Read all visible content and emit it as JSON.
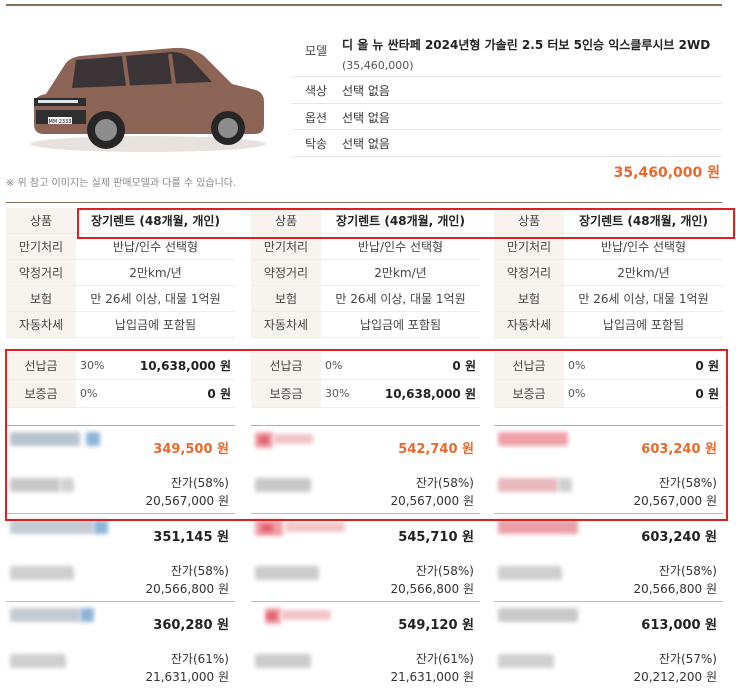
{
  "vehicle": {
    "labels": {
      "model": "모델",
      "color": "색상",
      "option": "옵션",
      "consignment": "탁송"
    },
    "model_name": "디 올 뉴 싼타페 2024년형 가솔린 2.5 터보 5인승 익스클루시브 2WD",
    "model_price": "(35,460,000)",
    "color": "선택 없음",
    "option": "선택 없음",
    "consignment": "선택 없음",
    "plate_text": "MM 2333",
    "car_color": "#8c6455",
    "disclaimer": "※ 위 참고 이미지는 실제 판매모델과 다를 수 있습니다.",
    "total_price": "35,460,000 원"
  },
  "labels": {
    "product": "상품",
    "maturity": "만기처리",
    "mileage": "약정거리",
    "insurance": "보험",
    "car_tax": "자동차세",
    "prepayment": "선납금",
    "deposit": "보증금"
  },
  "columns": [
    {
      "product": "장기렌트 (48개월, 개인)",
      "maturity": "반납/인수 선택형",
      "mileage": "2만km/년",
      "insurance": "만 26세 이상, 대물 1억원",
      "car_tax": "납입금에 포함됨",
      "prepay_pct": "30%",
      "prepay_amt": "10,638,000 원",
      "deposit_pct": "0%",
      "deposit_amt": "0 원",
      "offers": [
        {
          "price": "349,500 원",
          "resid_rate": "잔가(58%)",
          "resid_amt": "20,567,000 원"
        },
        {
          "price": "351,145 원",
          "resid_rate": "잔가(58%)",
          "resid_amt": "20,566,800 원"
        },
        {
          "price": "360,280 원",
          "resid_rate": "잔가(61%)",
          "resid_amt": "21,631,000 원"
        }
      ]
    },
    {
      "product": "장기렌트 (48개월, 개인)",
      "maturity": "반납/인수 선택형",
      "mileage": "2만km/년",
      "insurance": "만 26세 이상, 대물 1억원",
      "car_tax": "납입금에 포함됨",
      "prepay_pct": "0%",
      "prepay_amt": "0 원",
      "deposit_pct": "30%",
      "deposit_amt": "10,638,000 원",
      "offers": [
        {
          "price": "542,740 원",
          "resid_rate": "잔가(58%)",
          "resid_amt": "20,567,000 원"
        },
        {
          "price": "545,710 원",
          "resid_rate": "잔가(58%)",
          "resid_amt": "20,566,800 원"
        },
        {
          "price": "549,120 원",
          "resid_rate": "잔가(61%)",
          "resid_amt": "21,631,000 원"
        }
      ]
    },
    {
      "product": "장기렌트 (48개월, 개인)",
      "maturity": "반납/인수 선택형",
      "mileage": "2만km/년",
      "insurance": "만 26세 이상, 대물 1억원",
      "car_tax": "납입금에 포함됨",
      "prepay_pct": "0%",
      "prepay_amt": "0 원",
      "deposit_pct": "0%",
      "deposit_amt": "0 원",
      "offers": [
        {
          "price": "603,240 원",
          "resid_rate": "잔가(58%)",
          "resid_amt": "20,567,000 원"
        },
        {
          "price": "603,240 원",
          "resid_rate": "잔가(58%)",
          "resid_amt": "20,566,800 원"
        },
        {
          "price": "613,000 원",
          "resid_rate": "잔가(57%)",
          "resid_amt": "20,212,200 원"
        }
      ]
    }
  ],
  "colors": {
    "accent_price": "#e8692c",
    "highlight": "#e02020",
    "rule": "#8a6f58"
  }
}
